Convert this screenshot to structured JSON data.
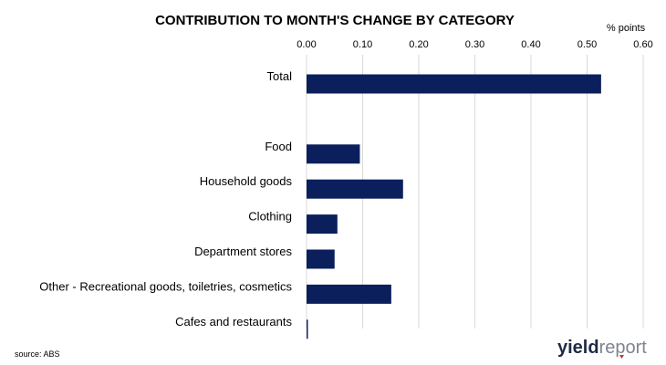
{
  "chart_data": {
    "type": "bar",
    "orientation": "horizontal",
    "title": "CONTRIBUTION TO MONTH'S CHANGE BY CATEGORY",
    "unit_label": "% points",
    "categories": [
      "Total",
      "",
      "Food",
      "Household goods",
      "Clothing",
      "Department stores",
      "Other - Recreational goods, toiletries, cosmetics",
      "Cafes and restaurants"
    ],
    "values": [
      0.525,
      null,
      0.095,
      0.172,
      0.055,
      0.05,
      0.151,
      0.002
    ],
    "xlim": [
      0,
      0.6
    ],
    "xticks": [
      "0.00",
      "0.10",
      "0.20",
      "0.30",
      "0.40",
      "0.50",
      "0.60"
    ],
    "xtick_values": [
      0,
      0.1,
      0.2,
      0.3,
      0.4,
      0.5,
      0.6
    ],
    "grid": true,
    "axis_position": "top",
    "bar_color": "#0b1f5c",
    "grid_color": "#d9d9d9"
  },
  "source": "source: ABS",
  "logo": {
    "part1": "yield",
    "part2": "report",
    "color1": "#1f2a44",
    "color2": "#7f8390",
    "accent": "#c0392b"
  }
}
